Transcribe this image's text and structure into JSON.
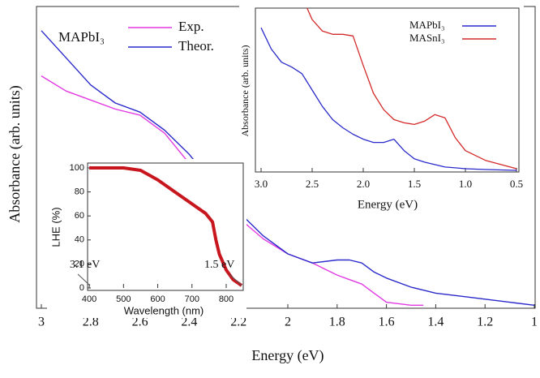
{
  "chart_data": [
    {
      "type": "line",
      "legend_title": "MAPbI₃",
      "xlabel": "Energy (eV)",
      "ylabel": "Absorbance (arb. units)",
      "x": [
        3,
        2.9,
        2.8,
        2.7,
        2.6,
        2.5,
        2.4,
        2.3,
        2.2,
        2.1,
        2.0,
        1.9,
        1.8,
        1.75,
        1.7,
        1.65,
        1.6,
        1.5,
        1.45,
        1.4,
        1.3,
        1.2,
        1.1,
        1.0
      ],
      "series": [
        {
          "name": "Exp.",
          "color": "#e23ae2",
          "values": [
            0.77,
            0.72,
            0.69,
            0.66,
            0.64,
            0.58,
            0.48,
            0.38,
            0.3,
            0.23,
            0.18,
            0.15,
            0.11,
            0.095,
            0.08,
            0.05,
            0.02,
            0.01,
            0.01,
            null,
            null,
            null,
            null,
            null
          ]
        },
        {
          "name": "Theor.",
          "color": "#2a2acb",
          "values": [
            0.92,
            0.83,
            0.74,
            0.68,
            0.65,
            0.59,
            0.51,
            0.41,
            0.32,
            0.24,
            0.18,
            0.15,
            0.16,
            0.16,
            0.15,
            0.12,
            0.1,
            0.07,
            0.06,
            0.05,
            0.04,
            0.03,
            0.02,
            0.01
          ]
        }
      ],
      "xlim": [
        3,
        1
      ],
      "xticks": [
        3,
        2.8,
        2.6,
        2.4,
        2.2,
        2,
        1.8,
        1.6,
        1.4,
        1.2,
        1
      ],
      "ylim": [
        0,
        1
      ]
    },
    {
      "type": "line",
      "xlabel": "Energy (eV)",
      "ylabel": "Absorbance (arb. units)",
      "x": [
        3.0,
        2.9,
        2.8,
        2.7,
        2.6,
        2.55,
        2.5,
        2.4,
        2.3,
        2.2,
        2.1,
        2.0,
        1.9,
        1.8,
        1.7,
        1.6,
        1.5,
        1.4,
        1.3,
        1.2,
        1.1,
        1.0,
        0.8,
        0.5
      ],
      "series": [
        {
          "name": "MAPbI₃",
          "color": "#2a2acb",
          "values": [
            0.88,
            0.75,
            0.67,
            0.64,
            0.6,
            0.55,
            0.5,
            0.4,
            0.32,
            0.27,
            0.23,
            0.2,
            0.18,
            0.18,
            0.2,
            0.13,
            0.08,
            0.06,
            0.045,
            0.03,
            0.025,
            0.02,
            0.015,
            0.01
          ]
        },
        {
          "name": "MASnI₃",
          "color": "#d42a2a",
          "values": [
            null,
            null,
            null,
            null,
            null,
            1.0,
            0.93,
            0.86,
            0.84,
            0.84,
            0.83,
            0.65,
            0.48,
            0.38,
            0.32,
            0.3,
            0.29,
            0.31,
            0.35,
            0.33,
            0.21,
            0.13,
            0.07,
            0.02
          ]
        }
      ],
      "xlim": [
        3.0,
        0.5
      ],
      "xticks": [
        {
          "value": 3.0,
          "label": "3.0"
        },
        {
          "value": 2.5,
          "label": "2.5"
        },
        {
          "value": 2.0,
          "label": "2.0"
        },
        {
          "value": 1.5,
          "label": "1.5"
        },
        {
          "value": 1.0,
          "label": "1.0"
        },
        0.5
      ],
      "ylim": [
        0,
        1
      ]
    },
    {
      "type": "line",
      "xlabel": "Wavelength (nm)",
      "ylabel": "LHE (%)",
      "annotations": [
        "3.1 eV",
        "1.5 eV"
      ],
      "x": [
        400,
        450,
        500,
        550,
        600,
        650,
        700,
        740,
        760,
        770,
        780,
        800,
        820,
        845
      ],
      "series": [
        {
          "name": "LHE",
          "color": "#c8161e",
          "values": [
            100,
            100,
            100,
            98,
            90,
            80,
            70,
            62,
            55,
            40,
            28,
            15,
            7,
            2
          ]
        }
      ],
      "xlim": [
        395,
        845
      ],
      "xticks": [
        400,
        500,
        600,
        700,
        800
      ],
      "ylim": [
        0,
        100
      ],
      "yticks": [
        0,
        20,
        40,
        60,
        80,
        100
      ]
    }
  ]
}
